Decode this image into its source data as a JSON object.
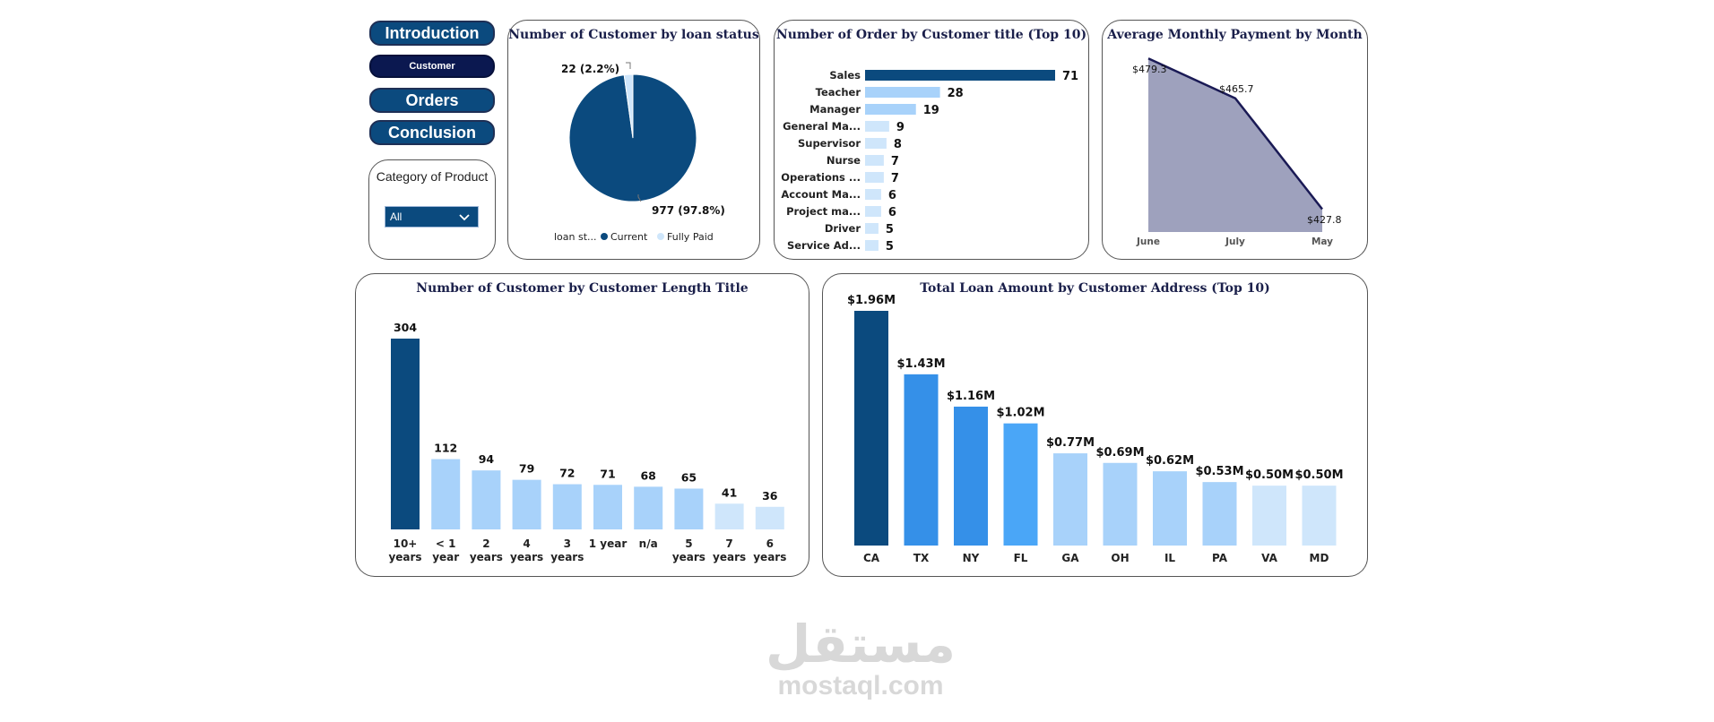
{
  "nav": {
    "introduction": "Introduction",
    "customer": "Customer",
    "orders": "Orders",
    "conclusion": "Conclusion"
  },
  "slicer": {
    "title": "Category of Product",
    "selected": "All"
  },
  "colors": {
    "dark_blue": "#0b4a7e",
    "light_blue": "#a8d2fa",
    "lighter_blue": "#cfe6fb",
    "mid_blue": "#3590e8",
    "bright_blue": "#4aa6f7",
    "area_fill": "#9ea1bd",
    "line": "#1a1a55"
  },
  "chart_data": [
    {
      "type": "pie",
      "title": "Number of Customer by loan status",
      "legend_title": "loan st...",
      "categories": [
        "Current",
        "Fully Paid"
      ],
      "values": [
        977,
        22
      ],
      "labels": [
        "977 (97.8%)",
        "22 (2.2%)"
      ],
      "legend_placement": "bottom"
    },
    {
      "type": "bar",
      "orientation": "horizontal",
      "title": "Number of Order by Customer title (Top 10)",
      "categories": [
        "Sales",
        "Teacher",
        "Manager",
        "General Ma...",
        "Supervisor",
        "Nurse",
        "Operations ...",
        "Account Ma...",
        "Project ma...",
        "Driver",
        "Service Ad..."
      ],
      "values": [
        71,
        28,
        19,
        9,
        8,
        7,
        7,
        6,
        6,
        5,
        5
      ]
    },
    {
      "type": "area",
      "title": "Average Monthly Payment by Month",
      "categories": [
        "June",
        "July",
        "May"
      ],
      "values": [
        479.3,
        465.7,
        427.8
      ],
      "labels": [
        "$479.3",
        "$465.7",
        "$427.8"
      ]
    },
    {
      "type": "bar",
      "title": "Number of Customer by Customer Length Title",
      "categories": [
        [
          "10+",
          "years"
        ],
        [
          "< 1",
          "year"
        ],
        [
          "2",
          "years"
        ],
        [
          "4",
          "years"
        ],
        [
          "3",
          "years"
        ],
        [
          "1 year"
        ],
        [
          "n/a"
        ],
        [
          "5",
          "years"
        ],
        [
          "7",
          "years"
        ],
        [
          "6",
          "years"
        ]
      ],
      "values": [
        304,
        112,
        94,
        79,
        72,
        71,
        68,
        65,
        41,
        36
      ]
    },
    {
      "type": "bar",
      "title": "Total Loan Amount by Customer Address (Top 10)",
      "categories": [
        "CA",
        "TX",
        "NY",
        "FL",
        "GA",
        "OH",
        "IL",
        "PA",
        "VA",
        "MD"
      ],
      "values": [
        1.96,
        1.43,
        1.16,
        1.02,
        0.77,
        0.69,
        0.62,
        0.53,
        0.5,
        0.5
      ],
      "labels": [
        "$1.96M",
        "$1.43M",
        "$1.16M",
        "$1.02M",
        "$0.77M",
        "$0.69M",
        "$0.62M",
        "$0.53M",
        "$0.50M",
        "$0.50M"
      ]
    }
  ],
  "watermark": {
    "logo": "مستقل",
    "text": "mostaql.com"
  }
}
